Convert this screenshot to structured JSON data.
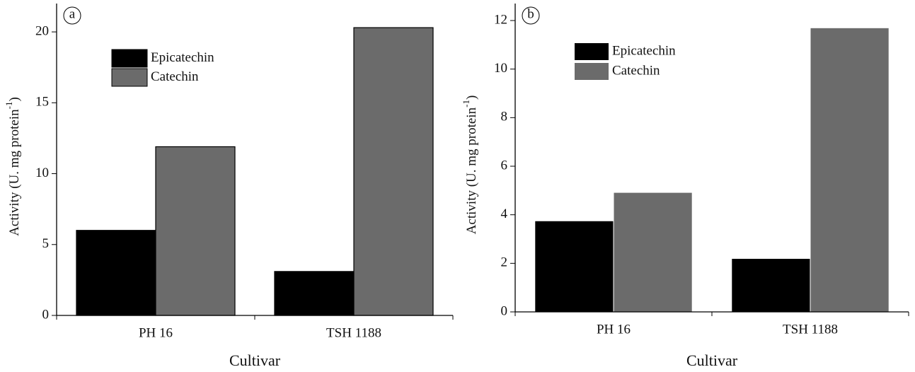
{
  "chart_data": [
    {
      "type": "bar",
      "annotation": "a",
      "ylabel": "Activity (U. mg protein",
      "ylabel_sup": "-1",
      "ylabel_end": ")",
      "xlabel": "Cultivar",
      "categories": [
        "PH 16",
        "TSH 1188"
      ],
      "series": [
        {
          "name": "Epicatechin",
          "color": "#000000",
          "values": [
            6.0,
            3.1
          ]
        },
        {
          "name": "Catechin",
          "color": "#6b6b6b",
          "values": [
            11.9,
            20.3
          ]
        }
      ],
      "edgecolor": "#000000",
      "ylim": [
        0,
        22
      ],
      "yticks": [
        0,
        5,
        10,
        15,
        20
      ]
    },
    {
      "type": "bar",
      "annotation": "b",
      "ylabel": "Activity (U. mg protein",
      "ylabel_sup": "-1",
      "ylabel_end": ")",
      "xlabel": "Cultivar",
      "categories": [
        "PH 16",
        "TSH 1188"
      ],
      "series": [
        {
          "name": "Epicatechin",
          "color": "#000000",
          "values": [
            3.75,
            2.2
          ]
        },
        {
          "name": "Catechin",
          "color": "#6b6b6b",
          "values": [
            4.92,
            11.7
          ]
        }
      ],
      "ylim": [
        0,
        12.7
      ],
      "yticks": [
        0,
        2,
        4,
        6,
        8,
        10,
        12
      ]
    }
  ]
}
